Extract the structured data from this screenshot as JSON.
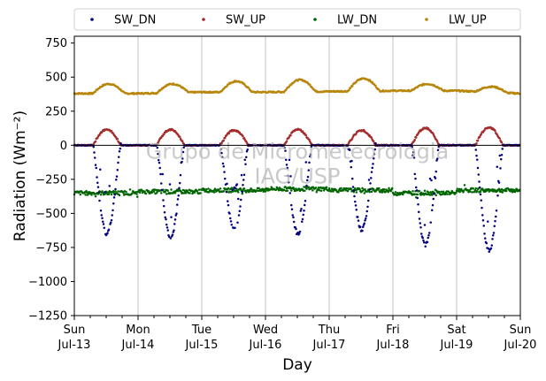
{
  "chart_data": {
    "type": "scatter",
    "xlabel": "Day",
    "ylabel": "Radiation (Wm⁻²)",
    "xlim": [
      "2014-07-13 00:00",
      "2014-07-20 00:00"
    ],
    "ylim": [
      -1250,
      800
    ],
    "yticks": [
      -1250,
      -1000,
      -750,
      -500,
      -250,
      0,
      250,
      500,
      750
    ],
    "xticks": [
      {
        "line1": "Sun",
        "line2": "Jul-13"
      },
      {
        "line1": "Mon",
        "line2": "Jul-14"
      },
      {
        "line1": "Tue",
        "line2": "Jul-15"
      },
      {
        "line1": "Wed",
        "line2": "Jul-16"
      },
      {
        "line1": "Thu",
        "line2": "Jul-17"
      },
      {
        "line1": "Fri",
        "line2": "Jul-18"
      },
      {
        "line1": "Sat",
        "line2": "Jul-19"
      },
      {
        "line1": "Sun",
        "line2": "Jul-20"
      }
    ],
    "grid": "vertical",
    "legend_position": "top",
    "watermark": [
      "Grupo de Micrometeorologia",
      "IAG/USP"
    ],
    "series": [
      {
        "name": "SW_DN",
        "color": "#00007f",
        "daily_min": [
          -650,
          -670,
          -620,
          -650,
          -620,
          -730,
          -770
        ],
        "sunrise_hour": 7,
        "sunset_hour": 17.5
      },
      {
        "name": "SW_UP",
        "color": "#a52a2a",
        "daily_max": [
          115,
          115,
          110,
          115,
          110,
          125,
          130
        ],
        "sunrise_hour": 7,
        "sunset_hour": 17.5
      },
      {
        "name": "LW_DN",
        "color": "#006400",
        "daily_mean": [
          -350,
          -340,
          -330,
          -320,
          -330,
          -350,
          -330
        ]
      },
      {
        "name": "LW_UP",
        "color": "#b8860b",
        "night_level": [
          380,
          380,
          390,
          390,
          395,
          400,
          400,
          380
        ],
        "day_peak": [
          450,
          450,
          470,
          480,
          490,
          450,
          430
        ]
      }
    ]
  }
}
